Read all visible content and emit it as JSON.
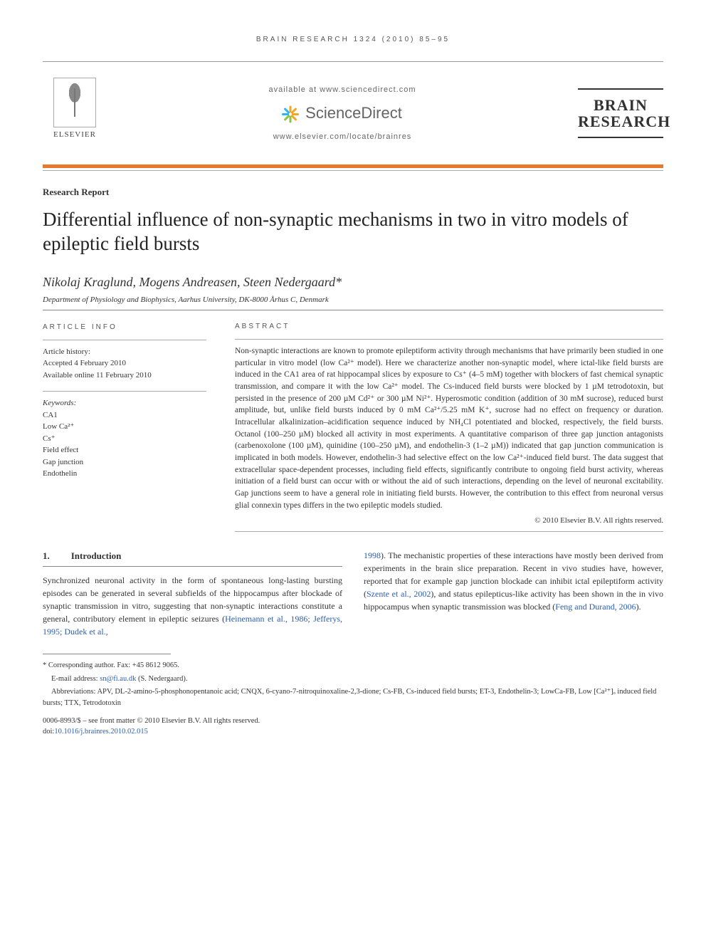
{
  "running_head": "BRAIN RESEARCH 1324 (2010) 85–95",
  "header": {
    "available_at": "available at www.sciencedirect.com",
    "sciencedirect": "ScienceDirect",
    "locate": "www.elsevier.com/locate/brainres",
    "elsevier": "ELSEVIER",
    "journal_line1": "BRAIN",
    "journal_line2": "RESEARCH",
    "sd_colors": [
      "#f5a623",
      "#f5a623",
      "#8bc34a",
      "#8bc34a",
      "#29b6f6",
      "#29b6f6",
      "#f5a623",
      "#f5a623"
    ]
  },
  "article": {
    "doc_type": "Research Report",
    "title": "Differential influence of non-synaptic mechanisms in two in vitro models of epileptic field bursts",
    "authors": "Nikolaj Kraglund, Mogens Andreasen, Steen Nedergaard*",
    "affiliation": "Department of Physiology and Biophysics, Aarhus University, DK-8000 Århus C, Denmark"
  },
  "info": {
    "heading": "ARTICLE INFO",
    "history_label": "Article history:",
    "accepted": "Accepted 4 February 2010",
    "online": "Available online 11 February 2010",
    "keywords_label": "Keywords:",
    "keywords": [
      "CA1",
      "Low Ca²⁺",
      "Cs⁺",
      "Field effect",
      "Gap junction",
      "Endothelin"
    ]
  },
  "abstract": {
    "heading": "ABSTRACT",
    "text": "Non-synaptic interactions are known to promote epileptiform activity through mechanisms that have primarily been studied in one particular in vitro model (low Ca²⁺ model). Here we characterize another non-synaptic model, where ictal-like field bursts are induced in the CA1 area of rat hippocampal slices by exposure to Cs⁺ (4–5 mM) together with blockers of fast chemical synaptic transmission, and compare it with the low Ca²⁺ model. The Cs-induced field bursts were blocked by 1 µM tetrodotoxin, but persisted in the presence of 200 µM Cd²⁺ or 300 µM Ni²⁺. Hyperosmotic condition (addition of 30 mM sucrose), reduced burst amplitude, but, unlike field bursts induced by 0 mM Ca²⁺/5.25 mM K⁺, sucrose had no effect on frequency or duration. Intracellular alkalinization–acidification sequence induced by NH₄Cl potentiated and blocked, respectively, the field bursts. Octanol (100–250 µM) blocked all activity in most experiments. A quantitative comparison of three gap junction antagonists (carbenoxolone (100 µM), quinidine (100–250 µM), and endothelin-3 (1–2 µM)) indicated that gap junction communication is implicated in both models. However, endothelin-3 had selective effect on the low Ca²⁺-induced field burst. The data suggest that extracellular space-dependent processes, including field effects, significantly contribute to ongoing field burst activity, whereas initiation of a field burst can occur with or without the aid of such interactions, depending on the level of neuronal excitability. Gap junctions seem to have a general role in initiating field bursts. However, the contribution to this effect from neuronal versus glial connexin types differs in the two epileptic models studied.",
    "copyright": "© 2010 Elsevier B.V. All rights reserved."
  },
  "section1": {
    "num": "1.",
    "title": "Introduction",
    "col1": "Synchronized neuronal activity in the form of spontaneous long-lasting bursting episodes can be generated in several subfields of the hippocampus after blockade of synaptic transmission in vitro, suggesting that non-synaptic interactions constitute a general, contributory element in epileptic seizures (",
    "col1_cite": "Heinemann et al., 1986; Jefferys, 1995; Dudek et al.,",
    "col2_cite1": "1998",
    "col2_a": "). The mechanistic properties of these interactions have mostly been derived from experiments in the brain slice preparation. Recent in vivo studies have, however, reported that for example gap junction blockade can inhibit ictal epileptiform activity (",
    "col2_cite2": "Szente et al., 2002",
    "col2_b": "), and status epilepticus-like activity has been shown in the in vivo hippocampus when synaptic transmission was blocked (",
    "col2_cite3": "Feng and Durand, 2006",
    "col2_c": ")."
  },
  "footnotes": {
    "corr": "* Corresponding author. Fax: +45 8612 9065.",
    "email_label": "E-mail address: ",
    "email": "sn@fi.au.dk",
    "email_tail": " (S. Nedergaard).",
    "abbrev": "Abbreviations: APV, DL-2-amino-5-phosphonopentanoic acid; CNQX, 6-cyano-7-nitroquinoxaline-2,3-dione; Cs-FB, Cs-induced field bursts; ET-3, Endothelin-3; LowCa-FB, Low [Ca²⁺]ₒ induced field bursts; TTX, Tetrodotoxin"
  },
  "doi": {
    "line1": "0006-8993/$ – see front matter © 2010 Elsevier B.V. All rights reserved.",
    "line2_a": "doi:",
    "line2_b": "10.1016/j.brainres.2010.02.015"
  },
  "colors": {
    "accent": "#e8792b",
    "link": "#2a5db0"
  }
}
